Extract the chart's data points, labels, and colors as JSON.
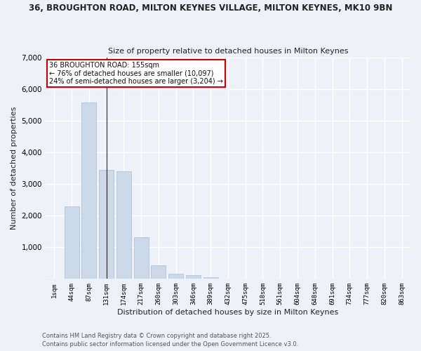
{
  "title_line1": "36, BROUGHTON ROAD, MILTON KEYNES VILLAGE, MILTON KEYNES, MK10 9BN",
  "title_line2": "Size of property relative to detached houses in Milton Keynes",
  "xlabel": "Distribution of detached houses by size in Milton Keynes",
  "ylabel": "Number of detached properties",
  "bar_color": "#ccd9e8",
  "bar_edgecolor": "#aabbd0",
  "background_color": "#eef2f8",
  "grid_color": "#ffffff",
  "categories": [
    "1sqm",
    "44sqm",
    "87sqm",
    "131sqm",
    "174sqm",
    "217sqm",
    "260sqm",
    "303sqm",
    "346sqm",
    "389sqm",
    "432sqm",
    "475sqm",
    "518sqm",
    "561sqm",
    "604sqm",
    "648sqm",
    "691sqm",
    "734sqm",
    "777sqm",
    "820sqm",
    "863sqm"
  ],
  "values": [
    8,
    2280,
    5570,
    3440,
    3390,
    1310,
    420,
    155,
    115,
    55,
    12,
    4,
    2,
    1,
    1,
    0,
    0,
    0,
    0,
    0,
    4
  ],
  "ylim": [
    0,
    7000
  ],
  "yticks": [
    0,
    1000,
    2000,
    3000,
    4000,
    5000,
    6000,
    7000
  ],
  "property_label": "36 BROUGHTON ROAD: 155sqm",
  "annot_line1": "← 76% of detached houses are smaller (10,097)",
  "annot_line2": "24% of semi-detached houses are larger (3,204) →",
  "vline_x": 3.0,
  "annotation_box_color": "#ffffff",
  "annotation_box_edgecolor": "#cc0000",
  "footer_line1": "Contains HM Land Registry data © Crown copyright and database right 2025.",
  "footer_line2": "Contains public sector information licensed under the Open Government Licence v3.0."
}
